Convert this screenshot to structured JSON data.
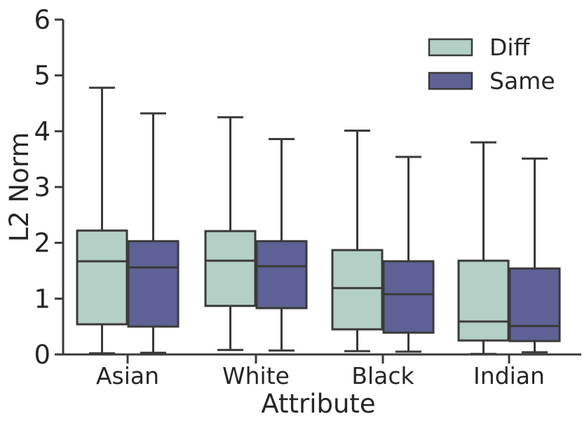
{
  "figure": {
    "kind": "seaborn-style grouped box plot",
    "background": "#ffffff"
  },
  "chart_data": {
    "type": "box",
    "title": "",
    "xlabel": "Attribute",
    "ylabel": "L2 Norm",
    "ylim": [
      0,
      6
    ],
    "yticks": [
      0,
      1,
      2,
      3,
      4,
      5,
      6
    ],
    "categories": [
      "Asian",
      "White",
      "Black",
      "Indian"
    ],
    "grid": false,
    "legend": {
      "position": "upper right",
      "entries": [
        "Diff",
        "Same"
      ]
    },
    "series": [
      {
        "name": "Diff",
        "color": "#b4cfc6",
        "boxes": [
          {
            "category": "Asian",
            "whisker_low": 0.02,
            "q1": 0.54,
            "median": 1.67,
            "q3": 2.22,
            "whisker_high": 4.78
          },
          {
            "category": "White",
            "whisker_low": 0.08,
            "q1": 0.87,
            "median": 1.68,
            "q3": 2.21,
            "whisker_high": 4.25
          },
          {
            "category": "Black",
            "whisker_low": 0.06,
            "q1": 0.45,
            "median": 1.19,
            "q3": 1.87,
            "whisker_high": 4.01
          },
          {
            "category": "Indian",
            "whisker_low": 0.01,
            "q1": 0.25,
            "median": 0.59,
            "q3": 1.68,
            "whisker_high": 3.8
          }
        ]
      },
      {
        "name": "Same",
        "color": "#5e6195",
        "boxes": [
          {
            "category": "Asian",
            "whisker_low": 0.03,
            "q1": 0.5,
            "median": 1.56,
            "q3": 2.03,
            "whisker_high": 4.32
          },
          {
            "category": "White",
            "whisker_low": 0.07,
            "q1": 0.83,
            "median": 1.58,
            "q3": 2.03,
            "whisker_high": 3.86
          },
          {
            "category": "Black",
            "whisker_low": 0.05,
            "q1": 0.39,
            "median": 1.08,
            "q3": 1.67,
            "whisker_high": 3.54
          },
          {
            "category": "Indian",
            "whisker_low": 0.04,
            "q1": 0.24,
            "median": 0.51,
            "q3": 1.54,
            "whisker_high": 3.51
          }
        ]
      }
    ],
    "colors": {
      "axis": "#3a3a3a",
      "box_edge": "#3a3a3a",
      "text": "#262626",
      "diff_fill": "#b4cfc6",
      "same_fill": "#5e6195"
    }
  }
}
